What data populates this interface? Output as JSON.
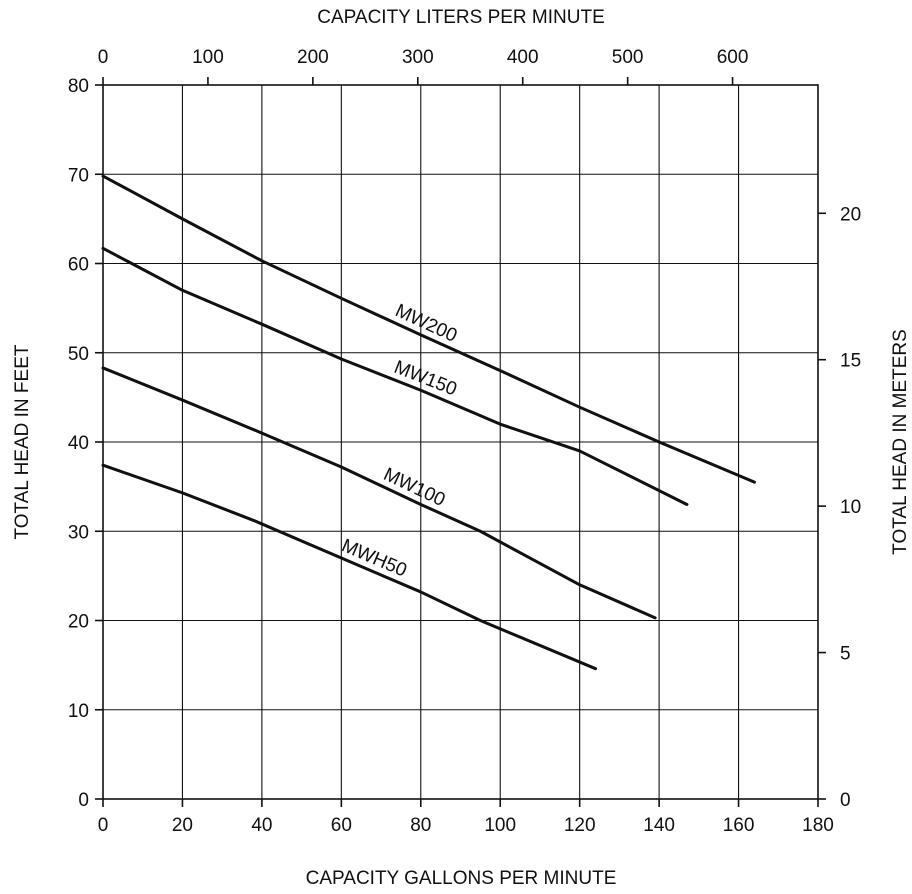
{
  "chart_data": {
    "type": "line",
    "title": "",
    "xlabel": "CAPACITY GALLONS PER MINUTE",
    "ylabel": "TOTAL HEAD IN FEET",
    "x2label": "CAPACITY LITERS PER MINUTE",
    "y2label": "TOTAL HEAD IN METERS",
    "xlim": [
      0,
      180
    ],
    "ylim": [
      0,
      80
    ],
    "x2lim": [
      0,
      681.4
    ],
    "y2lim": [
      0,
      24.38
    ],
    "xticks": [
      0,
      20,
      40,
      60,
      80,
      100,
      120,
      140,
      160,
      180
    ],
    "yticks": [
      0,
      10,
      20,
      30,
      40,
      50,
      60,
      70,
      80
    ],
    "x2ticks": [
      0,
      100,
      200,
      300,
      400,
      500,
      600
    ],
    "y2ticks": [
      0,
      5,
      10,
      15,
      20
    ],
    "grid": true,
    "legend": "none",
    "series": [
      {
        "name": "MW200",
        "x": [
          0,
          20,
          40,
          60,
          80,
          100,
          120,
          140,
          164
        ],
        "y": [
          69.8,
          65,
          60.3,
          56.1,
          52,
          48,
          43.9,
          40,
          35.5
        ]
      },
      {
        "name": "MW150",
        "x": [
          0,
          20,
          40,
          60,
          80,
          100,
          120,
          147
        ],
        "y": [
          61.7,
          57,
          53.2,
          49.3,
          45.8,
          42,
          39,
          33
        ]
      },
      {
        "name": "MW100",
        "x": [
          0,
          20,
          40,
          60,
          80,
          95,
          120,
          139
        ],
        "y": [
          48.3,
          44.7,
          41,
          37.2,
          33,
          30,
          24,
          20.3
        ]
      },
      {
        "name": "MWH50",
        "x": [
          0,
          20,
          38,
          60,
          80,
          95,
          124
        ],
        "y": [
          37.4,
          34.3,
          31.2,
          27,
          23.2,
          20,
          14.6
        ]
      }
    ]
  }
}
